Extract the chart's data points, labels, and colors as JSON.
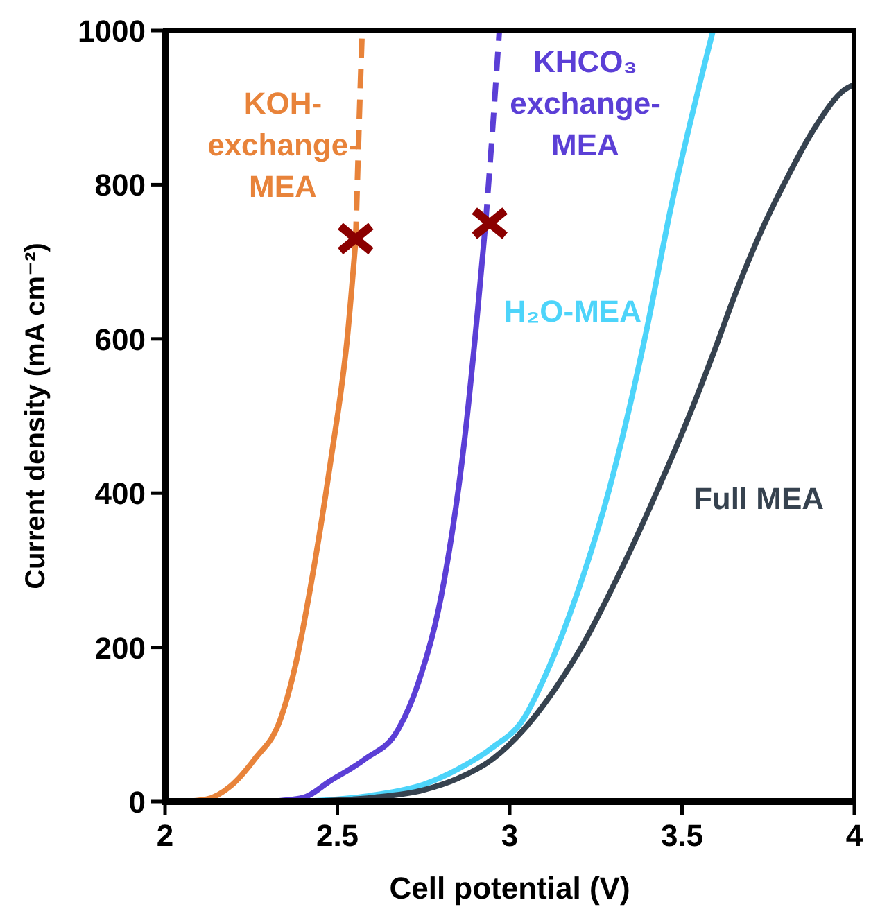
{
  "chart_data": {
    "type": "line",
    "xlabel": "Cell potential (V)",
    "ylabel": "Current density (mA cm⁻²)",
    "xlim": [
      2,
      4
    ],
    "ylim": [
      0,
      1000
    ],
    "xticks": [
      2,
      2.5,
      3,
      3.5,
      4
    ],
    "yticks": [
      0,
      200,
      400,
      600,
      800,
      1000
    ],
    "grid": false,
    "line_style": "solid",
    "marker": "none",
    "series": [
      {
        "name": "KOH-exchange-MEA",
        "color": "#e8833a",
        "x": [
          2.05,
          2.12,
          2.19,
          2.26,
          2.335,
          2.38,
          2.42,
          2.48,
          2.53,
          2.553
        ],
        "values": [
          0,
          3,
          20,
          55,
          107,
          180,
          273,
          440,
          607,
          727
        ]
      },
      {
        "color": "#e8833a",
        "line_style": "dashed",
        "x": [
          2.553,
          2.565,
          2.572
        ],
        "values": [
          727,
          906,
          1000
        ]
      },
      {
        "name": "KHCO₃ exchange-MEA",
        "color": "#5b3fd6",
        "x": [
          2.3,
          2.4,
          2.48,
          2.58,
          2.676,
          2.735,
          2.81,
          2.87,
          2.905,
          2.93
        ],
        "values": [
          0,
          5,
          27,
          55,
          93,
          154,
          287,
          473,
          627,
          750
        ]
      },
      {
        "color": "#5b3fd6",
        "line_style": "dashed",
        "x": [
          2.93,
          2.95,
          2.97
        ],
        "values": [
          750,
          870,
          1000
        ]
      },
      {
        "name": "H₂O-MEA",
        "color": "#4dd4fa",
        "x": [
          2.4,
          2.6,
          2.75,
          2.85,
          2.95,
          3.04,
          3.1,
          3.172,
          3.29,
          3.395,
          3.469,
          3.59
        ],
        "values": [
          0,
          8,
          22,
          42,
          70,
          107,
          160,
          240,
          407,
          607,
          773,
          1000
        ]
      },
      {
        "name": "Full MEA",
        "color": "#36424f",
        "x": [
          2.4,
          2.6,
          2.75,
          2.85,
          2.95,
          3.04,
          3.13,
          3.217,
          3.29,
          3.365,
          3.44,
          3.514,
          3.59,
          3.662,
          3.73,
          3.795,
          3.884,
          3.974,
          4
        ],
        "values": [
          0,
          5,
          15,
          30,
          55,
          93,
          145,
          207,
          270,
          340,
          415,
          493,
          580,
          667,
          740,
          800,
          873,
          924,
          930
        ]
      },
      {
        "type": "scatter",
        "marker": "cross",
        "color": "#8b0000",
        "x": [
          2.553,
          2.942
        ],
        "values": [
          730,
          750
        ]
      }
    ]
  }
}
